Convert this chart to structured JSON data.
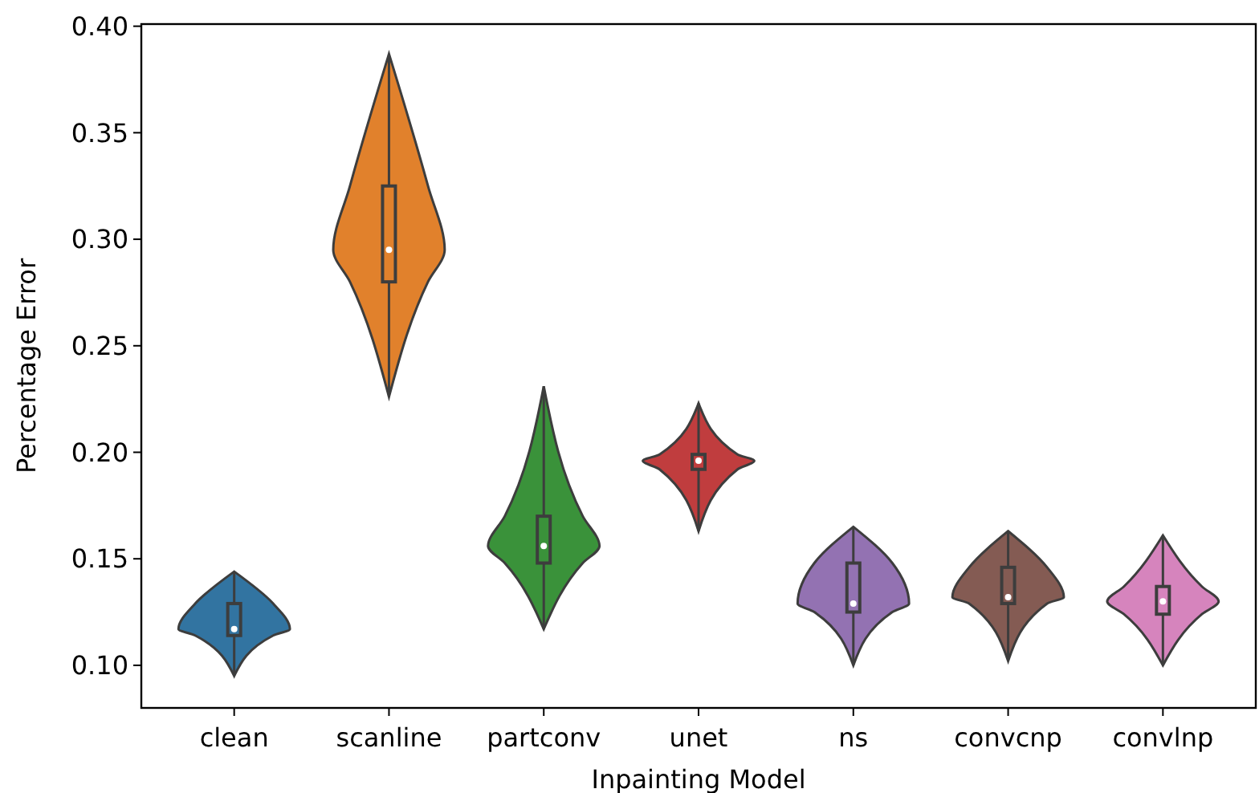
{
  "chart_data": {
    "type": "box",
    "xlabel": "Inpainting Model",
    "ylabel": "Percentage Error",
    "categories": [
      "clean",
      "scanline",
      "partconv",
      "unet",
      "ns",
      "convcnp",
      "convlnp"
    ],
    "colors": [
      "#3274a1",
      "#e1812c",
      "#3a923a",
      "#c03d3e",
      "#9372b2",
      "#845b53",
      "#d684bd"
    ],
    "boxes": [
      {
        "low": 0.095,
        "q1": 0.114,
        "median": 0.117,
        "q3": 0.129,
        "high": 0.144
      },
      {
        "low": 0.226,
        "q1": 0.28,
        "median": 0.295,
        "q3": 0.325,
        "high": 0.387
      },
      {
        "low": 0.117,
        "q1": 0.148,
        "median": 0.156,
        "q3": 0.17,
        "high": 0.231
      },
      {
        "low": 0.163,
        "q1": 0.192,
        "median": 0.196,
        "q3": 0.199,
        "high": 0.223
      },
      {
        "low": 0.1,
        "q1": 0.125,
        "median": 0.129,
        "q3": 0.148,
        "high": 0.165
      },
      {
        "low": 0.102,
        "q1": 0.129,
        "median": 0.132,
        "q3": 0.146,
        "high": 0.163
      },
      {
        "low": 0.1,
        "q1": 0.124,
        "median": 0.13,
        "q3": 0.137,
        "high": 0.161
      }
    ],
    "ylim": [
      0.08,
      0.401
    ],
    "yticks": [
      {
        "value": 0.1,
        "label": "0.10"
      },
      {
        "value": 0.15,
        "label": "0.15"
      },
      {
        "value": 0.2,
        "label": "0.20"
      },
      0.25,
      {
        "value": 0.3,
        "label": "0.30"
      },
      0.35,
      {
        "value": 0.4,
        "label": "0.40"
      }
    ],
    "grid": false
  }
}
